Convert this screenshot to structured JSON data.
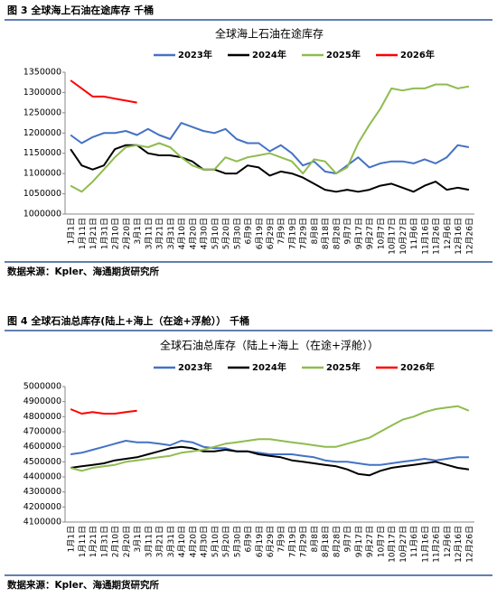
{
  "chart_data": [
    {
      "type": "line",
      "caption": "图 3 全球海上石油在途库存 千桶",
      "title": "全球海上石油在途库存",
      "source": "数据来源：Kpler、海通期货研究所",
      "categories": [
        "1月1日",
        "1月11日",
        "1月21日",
        "1月31日",
        "2月10日",
        "2月20日",
        "3月1日",
        "3月11日",
        "3月21日",
        "3月31日",
        "4月10日",
        "4月20日",
        "4月30日",
        "5月10日",
        "5月20日",
        "5月30日",
        "6月9日",
        "6月19日",
        "6月29日",
        "7月9日",
        "7月19日",
        "7月29日",
        "8月8日",
        "8月18日",
        "8月28日",
        "9月7日",
        "9月17日",
        "9月27日",
        "10月7日",
        "10月17日",
        "10月27日",
        "11月6日",
        "11月16日",
        "11月26日",
        "12月6日",
        "12月16日",
        "12月26日"
      ],
      "ylim": [
        1000000,
        1350000
      ],
      "yticks": [
        1000000,
        1050000,
        1100000,
        1150000,
        1200000,
        1250000,
        1300000,
        1350000
      ],
      "series": [
        {
          "name": "2023年",
          "color": "#4472c4",
          "values": [
            1195000,
            1175000,
            1190000,
            1200000,
            1200000,
            1205000,
            1195000,
            1210000,
            1195000,
            1185000,
            1225000,
            1215000,
            1205000,
            1200000,
            1210000,
            1185000,
            1175000,
            1175000,
            1155000,
            1170000,
            1150000,
            1120000,
            1130000,
            1105000,
            1100000,
            1120000,
            1140000,
            1115000,
            1125000,
            1130000,
            1130000,
            1125000,
            1135000,
            1125000,
            1140000,
            1170000,
            1165000
          ]
        },
        {
          "name": "2024年",
          "color": "#000000",
          "values": [
            1160000,
            1120000,
            1110000,
            1120000,
            1160000,
            1170000,
            1170000,
            1150000,
            1145000,
            1145000,
            1140000,
            1130000,
            1110000,
            1110000,
            1100000,
            1100000,
            1120000,
            1115000,
            1095000,
            1105000,
            1100000,
            1090000,
            1075000,
            1060000,
            1055000,
            1060000,
            1055000,
            1060000,
            1070000,
            1075000,
            1065000,
            1055000,
            1070000,
            1080000,
            1060000,
            1065000,
            1060000
          ]
        },
        {
          "name": "2025年",
          "color": "#8fbc4f",
          "values": [
            1070000,
            1055000,
            1080000,
            1110000,
            1140000,
            1165000,
            1170000,
            1165000,
            1175000,
            1165000,
            1140000,
            1120000,
            1110000,
            1110000,
            1140000,
            1130000,
            1140000,
            1145000,
            1150000,
            1140000,
            1130000,
            1100000,
            1135000,
            1130000,
            1100000,
            1115000,
            1175000,
            1220000,
            1260000,
            1310000,
            1305000,
            1310000,
            1310000,
            1320000,
            1320000,
            1310000,
            1315000
          ]
        },
        {
          "name": "2026年",
          "color": "#ff0000",
          "values": [
            1330000,
            1310000,
            1290000,
            1290000,
            1285000,
            1280000,
            1275000,
            null,
            null,
            null,
            null,
            null,
            null,
            null,
            null,
            null,
            null,
            null,
            null,
            null,
            null,
            null,
            null,
            null,
            null,
            null,
            null,
            null,
            null,
            null,
            null,
            null,
            null,
            null,
            null,
            null,
            null
          ]
        }
      ]
    },
    {
      "type": "line",
      "caption": "图 4 全球石油总库存(陆上+海上（在途+浮舱）） 千桶",
      "title": "全球石油总库存（陆上+海上（在途+浮舱））",
      "source": "数据来源：Kpler、海通期货研究所",
      "categories": [
        "1月1日",
        "1月11日",
        "1月21日",
        "1月31日",
        "2月10日",
        "2月20日",
        "3月1日",
        "3月11日",
        "3月21日",
        "3月31日",
        "4月10日",
        "4月20日",
        "4月30日",
        "5月10日",
        "5月20日",
        "5月30日",
        "6月9日",
        "6月19日",
        "6月29日",
        "7月9日",
        "7月19日",
        "7月29日",
        "8月8日",
        "8月18日",
        "8月28日",
        "9月7日",
        "9月17日",
        "9月27日",
        "10月7日",
        "10月17日",
        "10月27日",
        "11月6日",
        "11月16日",
        "11月26日",
        "12月6日",
        "12月16日",
        "12月26日"
      ],
      "ylim": [
        4100000,
        5000000
      ],
      "yticks": [
        4100000,
        4200000,
        4300000,
        4400000,
        4500000,
        4600000,
        4700000,
        4800000,
        4900000,
        5000000
      ],
      "series": [
        {
          "name": "2023年",
          "color": "#4472c4",
          "values": [
            4550000,
            4560000,
            4580000,
            4600000,
            4620000,
            4640000,
            4630000,
            4630000,
            4620000,
            4610000,
            4640000,
            4630000,
            4600000,
            4590000,
            4590000,
            4570000,
            4570000,
            4560000,
            4550000,
            4550000,
            4550000,
            4540000,
            4530000,
            4510000,
            4500000,
            4500000,
            4490000,
            4480000,
            4480000,
            4490000,
            4500000,
            4510000,
            4520000,
            4510000,
            4520000,
            4530000,
            4530000
          ]
        },
        {
          "name": "2024年",
          "color": "#000000",
          "values": [
            4460000,
            4470000,
            4480000,
            4490000,
            4510000,
            4520000,
            4530000,
            4550000,
            4570000,
            4590000,
            4600000,
            4590000,
            4570000,
            4570000,
            4580000,
            4570000,
            4570000,
            4550000,
            4540000,
            4530000,
            4510000,
            4500000,
            4490000,
            4480000,
            4470000,
            4450000,
            4420000,
            4410000,
            4440000,
            4460000,
            4470000,
            4480000,
            4490000,
            4500000,
            4480000,
            4460000,
            4450000
          ]
        },
        {
          "name": "2025年",
          "color": "#8fbc4f",
          "values": [
            4460000,
            4440000,
            4460000,
            4470000,
            4480000,
            4500000,
            4510000,
            4520000,
            4530000,
            4540000,
            4560000,
            4570000,
            4580000,
            4600000,
            4620000,
            4630000,
            4640000,
            4650000,
            4650000,
            4640000,
            4630000,
            4620000,
            4610000,
            4600000,
            4600000,
            4620000,
            4640000,
            4660000,
            4700000,
            4740000,
            4780000,
            4800000,
            4830000,
            4850000,
            4860000,
            4870000,
            4840000
          ]
        },
        {
          "name": "2026年",
          "color": "#ff0000",
          "values": [
            4850000,
            4820000,
            4830000,
            4820000,
            4820000,
            4830000,
            4840000,
            null,
            null,
            null,
            null,
            null,
            null,
            null,
            null,
            null,
            null,
            null,
            null,
            null,
            null,
            null,
            null,
            null,
            null,
            null,
            null,
            null,
            null,
            null,
            null,
            null,
            null,
            null,
            null,
            null,
            null
          ]
        }
      ]
    }
  ]
}
